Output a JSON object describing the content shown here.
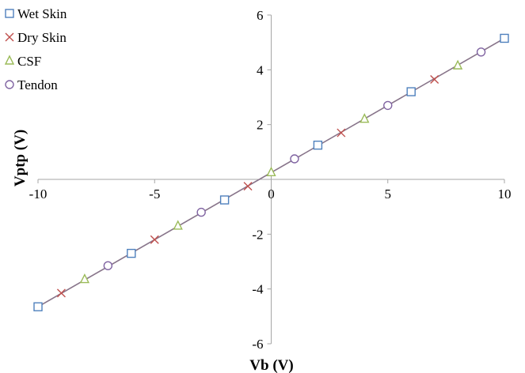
{
  "chart_data": {
    "type": "scatter",
    "title": "",
    "xlabel": "Vb (V)",
    "ylabel": "Vptp (V)",
    "xlim": [
      -10,
      10
    ],
    "ylim": [
      -6,
      6
    ],
    "x_ticks": [
      "-10",
      "-5",
      "0",
      "5",
      "10"
    ],
    "y_ticks": [
      "-6",
      "-4",
      "-2",
      "0",
      "2",
      "4",
      "6"
    ],
    "x_tick_values": [
      -10,
      -5,
      0,
      5,
      10
    ],
    "y_tick_values": [
      -6,
      -4,
      -2,
      0,
      2,
      4,
      6
    ],
    "grid": false,
    "legend_position": "top-left",
    "fit_line": {
      "points": [
        [
          -10,
          -4.65
        ],
        [
          10,
          5.15
        ]
      ],
      "colors": [
        "#4f81bd",
        "#c0504d",
        "#9bbb59",
        "#8064a2"
      ]
    },
    "series": [
      {
        "name": "Wet Skin",
        "marker": "square",
        "color": "#4f81bd",
        "points": [
          [
            -10,
            -4.65
          ],
          [
            -6,
            -2.7
          ],
          [
            -2,
            -0.75
          ],
          [
            2,
            1.25
          ],
          [
            6,
            3.2
          ],
          [
            10,
            5.15
          ]
        ]
      },
      {
        "name": "Dry Skin",
        "marker": "x",
        "color": "#c0504d",
        "points": [
          [
            -9,
            -4.15
          ],
          [
            -5,
            -2.2
          ],
          [
            -1,
            -0.25
          ],
          [
            3,
            1.7
          ],
          [
            7,
            3.65
          ]
        ]
      },
      {
        "name": "CSF",
        "marker": "triangle",
        "color": "#9bbb59",
        "points": [
          [
            -8,
            -3.65
          ],
          [
            -4,
            -1.7
          ],
          [
            0,
            0.25
          ],
          [
            4,
            2.2
          ],
          [
            8,
            4.15
          ]
        ]
      },
      {
        "name": "Tendon",
        "marker": "circle",
        "color": "#8064a2",
        "points": [
          [
            -7,
            -3.15
          ],
          [
            -3,
            -1.2
          ],
          [
            1,
            0.75
          ],
          [
            5,
            2.7
          ],
          [
            9,
            4.65
          ]
        ]
      }
    ]
  }
}
